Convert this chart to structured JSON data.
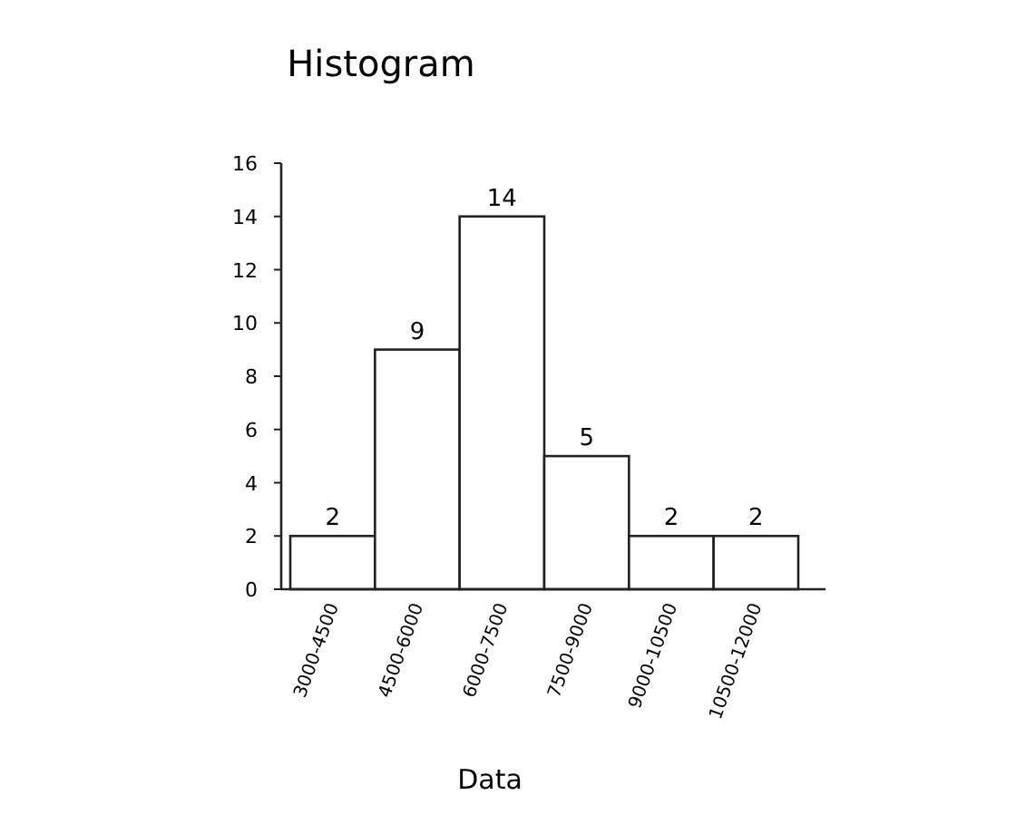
{
  "chart_data": {
    "type": "bar",
    "title": "Histogram",
    "xlabel": "Data",
    "categories": [
      "3000-4500",
      "4500-6000",
      "6000-7500",
      "7500-9000",
      "9000-10500",
      "10500-12000"
    ],
    "values": [
      2,
      9,
      14,
      5,
      2,
      2
    ],
    "color": "#ffffff",
    "ylim": [
      0,
      16
    ],
    "yticks": [
      0,
      2,
      4,
      6,
      8,
      10,
      12,
      14,
      16
    ],
    "grid": false,
    "data_labels": true
  }
}
